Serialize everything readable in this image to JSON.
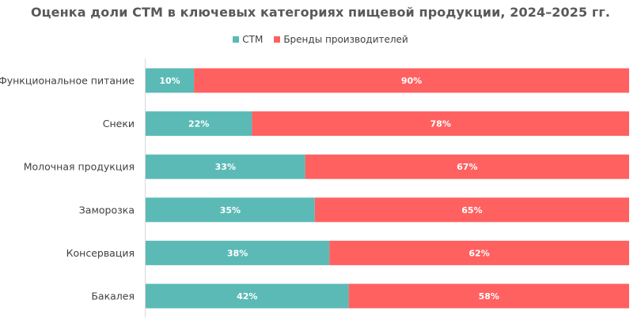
{
  "chart_data": {
    "type": "bar",
    "orientation": "horizontal",
    "stacked": "percent",
    "title": "Оценка доли СТМ в ключевых категориях пищевой продукции, 2024–2025 гг.",
    "categories": [
      "Функциональное питание",
      "Снеки",
      "Молочная продукция",
      "Заморозка",
      "Консервация",
      "Бакалея"
    ],
    "series": [
      {
        "name": "СТМ",
        "color": "#5bbab6",
        "values": [
          10,
          22,
          33,
          35,
          38,
          42
        ],
        "labels": [
          "10%",
          "22%",
          "33%",
          "35%",
          "38%",
          "42%"
        ]
      },
      {
        "name": "Бренды производителей",
        "color": "#ff6161",
        "values": [
          90,
          78,
          67,
          65,
          62,
          58
        ],
        "labels": [
          "90%",
          "78%",
          "67%",
          "65%",
          "62%",
          "58%"
        ]
      }
    ],
    "xlim": [
      0,
      100
    ],
    "grid": false,
    "legend": "top-center"
  }
}
